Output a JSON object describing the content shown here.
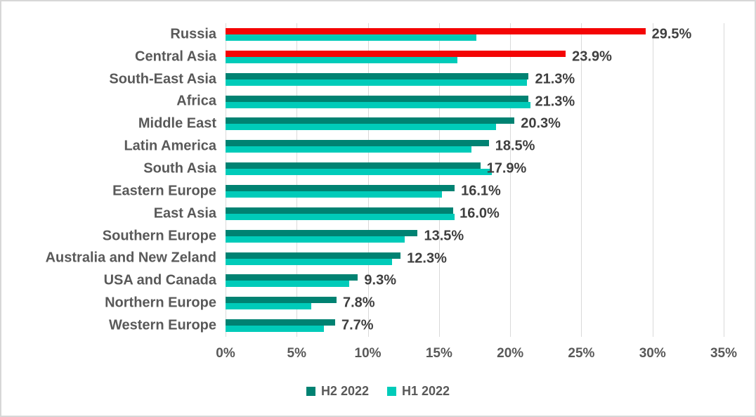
{
  "chart_data": {
    "type": "bar",
    "orientation": "horizontal",
    "title": "",
    "xlabel": "",
    "ylabel": "",
    "xlim": [
      0,
      35
    ],
    "grid": true,
    "legend_position": "bottom",
    "x_ticks": [
      "0%",
      "5%",
      "10%",
      "15%",
      "20%",
      "25%",
      "30%",
      "35%"
    ],
    "categories": [
      "Russia",
      "Central Asia",
      "South-East Asia",
      "Africa",
      "Middle East",
      "Latin America",
      "South Asia",
      "Eastern Europe",
      "East Asia",
      "Southern Europe",
      "Australia and New Zeland",
      "USA and Canada",
      "Northern Europe",
      "Western Europe"
    ],
    "series": [
      {
        "name": "H2 2022",
        "color": "#008272",
        "values": [
          29.5,
          23.9,
          21.3,
          21.3,
          20.3,
          18.5,
          17.9,
          16.1,
          16.0,
          13.5,
          12.3,
          9.3,
          7.8,
          7.7
        ],
        "data_labels": [
          "29.5%",
          "23.9%",
          "21.3%",
          "21.3%",
          "20.3%",
          "18.5%",
          "17.9%",
          "16.1%",
          "16.0%",
          "13.5%",
          "12.3%",
          "9.3%",
          "7.8%",
          "7.7%"
        ]
      },
      {
        "name": "H1 2022",
        "color": "#00cbb9",
        "values": [
          17.6,
          16.3,
          21.2,
          21.4,
          19.0,
          17.3,
          18.7,
          15.2,
          16.1,
          12.6,
          11.7,
          8.7,
          6.0,
          6.9
        ],
        "data_labels": []
      }
    ],
    "highlight": {
      "color": "#f40505",
      "series": "H2 2022",
      "categories": [
        "Russia",
        "Central Asia"
      ]
    }
  },
  "legend": {
    "items": [
      {
        "label": "H2 2022",
        "color": "#008272"
      },
      {
        "label": "H1 2022",
        "color": "#00cbb9"
      }
    ]
  },
  "colors": {
    "grid": "#d9d9d9",
    "frame_border": "#d7d7d7",
    "category_text": "#595959",
    "axis_text": "#595959",
    "data_label_text": "#3f3f3f",
    "background": "#ffffff"
  }
}
